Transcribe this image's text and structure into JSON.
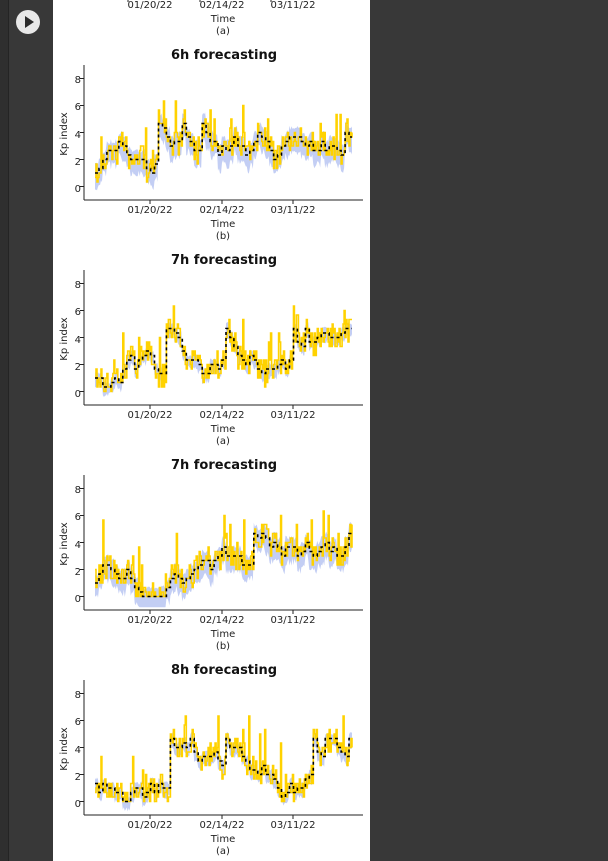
{
  "notebook": {
    "run_button_icon": "play-icon"
  },
  "colors": {
    "actual": "#000000",
    "prediction": "#FFD200",
    "uncertainty": "#B8C6F2"
  },
  "chart_data": [
    {
      "type": "line",
      "title": "",
      "xlabel": "Time",
      "caption": "(a)",
      "ylabel": "",
      "xticks": [
        "01/20/22",
        "02/14/22",
        "03/11/22"
      ],
      "partial": true
    },
    {
      "type": "line",
      "title": "6h forecasting",
      "xlabel": "Time",
      "caption": "(b)",
      "ylabel": "Kp index",
      "yticks": [
        "0",
        "2",
        "4",
        "6",
        "8"
      ],
      "xticks": [
        "01/20/22",
        "02/14/22",
        "03/11/22"
      ],
      "x_range": [
        "2022-01-01",
        "2022-04-01"
      ],
      "ylim": [
        -1,
        9
      ],
      "band": "wide",
      "seed": 11
    },
    {
      "type": "line",
      "title": "7h forecasting",
      "xlabel": "Time",
      "caption": "(a)",
      "ylabel": "Kp index",
      "yticks": [
        "0",
        "2",
        "4",
        "6",
        "8"
      ],
      "xticks": [
        "01/20/22",
        "02/14/22",
        "03/11/22"
      ],
      "x_range": [
        "2022-01-01",
        "2022-04-01"
      ],
      "ylim": [
        -1,
        9
      ],
      "band": "narrow",
      "seed": 23
    },
    {
      "type": "line",
      "title": "7h forecasting",
      "xlabel": "Time",
      "caption": "(b)",
      "ylabel": "Kp index",
      "yticks": [
        "0",
        "2",
        "4",
        "6",
        "8"
      ],
      "xticks": [
        "01/20/22",
        "02/14/22",
        "03/11/22"
      ],
      "x_range": [
        "2022-01-01",
        "2022-04-01"
      ],
      "ylim": [
        -1,
        9
      ],
      "band": "wide",
      "seed": 37
    },
    {
      "type": "line",
      "title": "8h forecasting",
      "xlabel": "Time",
      "caption": "(a)",
      "ylabel": "Kp index",
      "yticks": [
        "0",
        "2",
        "4",
        "6",
        "8"
      ],
      "xticks": [
        "01/20/22",
        "02/14/22",
        "03/11/22"
      ],
      "x_range": [
        "2022-01-01",
        "2022-04-01"
      ],
      "ylim": [
        -1,
        9
      ],
      "band": "narrow",
      "seed": 53
    }
  ]
}
